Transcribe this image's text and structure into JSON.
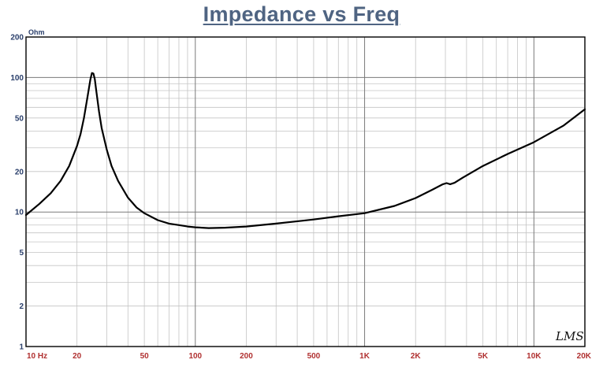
{
  "chart_data": {
    "type": "line",
    "title": "Impedance vs Freq",
    "ylabel_unit": "Ohm",
    "x_scale": "log",
    "y_scale": "log",
    "xlim": [
      10,
      20000
    ],
    "ylim": [
      1,
      200
    ],
    "x_tick_labels": [
      {
        "value": 10,
        "label": "10 Hz"
      },
      {
        "value": 20,
        "label": "20"
      },
      {
        "value": 50,
        "label": "50"
      },
      {
        "value": 100,
        "label": "100"
      },
      {
        "value": 200,
        "label": "200"
      },
      {
        "value": 500,
        "label": "500"
      },
      {
        "value": 1000,
        "label": "1K"
      },
      {
        "value": 2000,
        "label": "2K"
      },
      {
        "value": 5000,
        "label": "5K"
      },
      {
        "value": 10000,
        "label": "10K"
      },
      {
        "value": 20000,
        "label": "20K"
      }
    ],
    "y_tick_labels": [
      {
        "value": 200,
        "label": "200"
      },
      {
        "value": 100,
        "label": "100"
      },
      {
        "value": 50,
        "label": "50"
      },
      {
        "value": 20,
        "label": "20"
      },
      {
        "value": 10,
        "label": "10"
      },
      {
        "value": 5,
        "label": "5"
      },
      {
        "value": 2,
        "label": "2"
      },
      {
        "value": 1,
        "label": "1"
      }
    ],
    "grid": true,
    "line_color": "#000000",
    "series": [
      {
        "x": [
          10,
          12,
          14,
          16,
          18,
          20,
          21,
          22,
          23,
          24,
          24.5,
          25,
          25.5,
          26,
          27,
          28,
          30,
          32,
          35,
          40,
          45,
          50,
          60,
          70,
          80,
          85,
          90,
          100,
          120,
          150,
          200,
          300,
          500,
          700,
          1000,
          1500,
          2000,
          2500,
          2900,
          3050,
          3200,
          3400,
          3800,
          5000,
          7000,
          10000,
          15000,
          20000
        ],
        "y": [
          9.5,
          11.5,
          13.8,
          17,
          22,
          31,
          38,
          50,
          70,
          97,
          108,
          107,
          97,
          80,
          56,
          42,
          29,
          22,
          17,
          12.8,
          10.8,
          9.8,
          8.7,
          8.2,
          8.0,
          7.9,
          7.8,
          7.7,
          7.6,
          7.65,
          7.8,
          8.2,
          8.8,
          9.3,
          9.8,
          11.1,
          12.7,
          14.6,
          16.1,
          16.4,
          16.1,
          16.5,
          18,
          22,
          27,
          33,
          44,
          58
        ]
      }
    ]
  },
  "watermark": "LMS"
}
